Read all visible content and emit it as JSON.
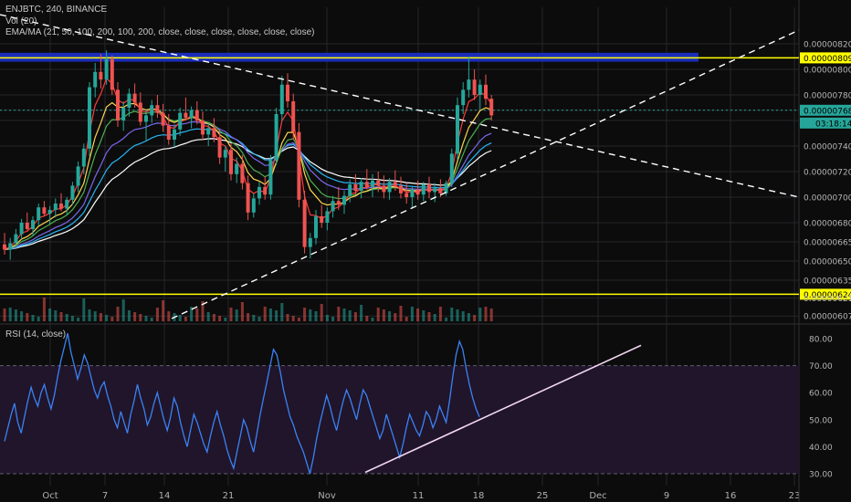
{
  "header": {
    "symbol": "ENJBTC, 240, BINANCE",
    "volume": "Vol (20)",
    "ema": "EMA/MA (21, 50, 100, 200, 100, 200, close, close, close, close, close, close)",
    "rsi": "RSI (14, close)"
  },
  "colors": {
    "background": "#0c0c0c",
    "grid": "#26262a",
    "bull": "#26a69a",
    "bear": "#ef5350",
    "supply_zone": "#1a2db8",
    "yellow_line": "#ffff00",
    "price_line": "#26a69a",
    "rsi_line": "#3b82f6",
    "rsi_band": "#20152a",
    "trend": "#ffffff",
    "ema21": "#ff3b3b",
    "ema50": "#ffd54f",
    "ema100": "#4caf50",
    "ema200": "#7b68ee",
    "ma100": "#29b6f6",
    "ma200": "#ffffff"
  },
  "chart_data": {
    "type": "candlestick",
    "price_axis": {
      "ticks": [
        "0.00000820",
        "0.00000809",
        "0.00000800",
        "0.00000780",
        "0.00000768",
        "0.00000760",
        "0.00000740",
        "0.00000720",
        "0.00000700",
        "0.00000680",
        "0.00000665",
        "0.00000650",
        "0.00000635",
        "0.00000624",
        "0.00000621",
        "0.00000607"
      ],
      "tick_values": [
        820,
        809,
        800,
        780,
        768,
        760,
        740,
        720,
        700,
        680,
        665,
        650,
        635,
        624,
        621,
        607
      ],
      "current_price": "0.00000768",
      "countdown": "03:18:14"
    },
    "x_axis": {
      "labels": [
        "Oct",
        "7",
        "14",
        "21",
        "Nov",
        "11",
        "18",
        "25",
        "Dec",
        "9",
        "16",
        "23"
      ]
    },
    "levels": [
      {
        "name": "resistance",
        "value": 809,
        "label": "0.00000809"
      },
      {
        "name": "support",
        "value": 624,
        "label": "0.00000624"
      }
    ],
    "supply_zone": [
      806,
      813
    ],
    "trendlines": [
      {
        "name": "descending",
        "from": [
          -5,
          840
        ],
        "to": [
          165,
          701
        ],
        "style": "dashed"
      },
      {
        "name": "ascending",
        "from": [
          27,
          603
        ],
        "to": [
          180,
          830
        ],
        "style": "dashed"
      }
    ],
    "candles_ohlc": [
      [
        663,
        672,
        655,
        659
      ],
      [
        659,
        668,
        651,
        664
      ],
      [
        664,
        675,
        660,
        671
      ],
      [
        671,
        683,
        667,
        680
      ],
      [
        680,
        688,
        674,
        675
      ],
      [
        675,
        685,
        670,
        682
      ],
      [
        682,
        695,
        678,
        692
      ],
      [
        692,
        697,
        685,
        687
      ],
      [
        687,
        693,
        679,
        690
      ],
      [
        690,
        699,
        684,
        695
      ],
      [
        695,
        703,
        689,
        691
      ],
      [
        691,
        700,
        686,
        698
      ],
      [
        698,
        712,
        694,
        709
      ],
      [
        709,
        728,
        704,
        724
      ],
      [
        724,
        742,
        718,
        738
      ],
      [
        738,
        790,
        732,
        786
      ],
      [
        786,
        805,
        778,
        798
      ],
      [
        798,
        812,
        785,
        792
      ],
      [
        792,
        815,
        788,
        808
      ],
      [
        808,
        811,
        780,
        784
      ],
      [
        784,
        790,
        755,
        760
      ],
      [
        760,
        775,
        752,
        770
      ],
      [
        770,
        785,
        763,
        781
      ],
      [
        781,
        789,
        770,
        774
      ],
      [
        774,
        782,
        756,
        759
      ],
      [
        759,
        768,
        744,
        764
      ],
      [
        764,
        776,
        758,
        772
      ],
      [
        772,
        780,
        762,
        766
      ],
      [
        766,
        773,
        751,
        756
      ],
      [
        756,
        765,
        741,
        745
      ],
      [
        745,
        757,
        739,
        753
      ],
      [
        753,
        770,
        748,
        766
      ],
      [
        766,
        778,
        760,
        762
      ],
      [
        762,
        771,
        754,
        768
      ],
      [
        768,
        775,
        757,
        760
      ],
      [
        760,
        767,
        745,
        749
      ],
      [
        749,
        758,
        740,
        754
      ],
      [
        754,
        762,
        743,
        747
      ],
      [
        747,
        753,
        726,
        731
      ],
      [
        731,
        740,
        720,
        737
      ],
      [
        737,
        742,
        713,
        718
      ],
      [
        718,
        731,
        711,
        726
      ],
      [
        726,
        733,
        706,
        711
      ],
      [
        711,
        717,
        682,
        688
      ],
      [
        688,
        703,
        684,
        699
      ],
      [
        699,
        712,
        694,
        708
      ],
      [
        708,
        716,
        698,
        702
      ],
      [
        702,
        733,
        698,
        729
      ],
      [
        729,
        770,
        725,
        765
      ],
      [
        765,
        795,
        760,
        788
      ],
      [
        788,
        797,
        770,
        775
      ],
      [
        775,
        781,
        745,
        751
      ],
      [
        751,
        758,
        692,
        698
      ],
      [
        698,
        705,
        656,
        661
      ],
      [
        661,
        672,
        652,
        668
      ],
      [
        668,
        690,
        663,
        685
      ],
      [
        685,
        694,
        676,
        680
      ],
      [
        680,
        692,
        674,
        689
      ],
      [
        689,
        701,
        684,
        697
      ],
      [
        697,
        708,
        690,
        694
      ],
      [
        694,
        705,
        687,
        701
      ],
      [
        701,
        714,
        696,
        710
      ],
      [
        710,
        718,
        702,
        705
      ],
      [
        705,
        715,
        699,
        712
      ],
      [
        712,
        722,
        706,
        708
      ],
      [
        708,
        718,
        700,
        713
      ],
      [
        713,
        720,
        704,
        709
      ],
      [
        709,
        717,
        699,
        704
      ],
      [
        704,
        715,
        698,
        712
      ],
      [
        712,
        721,
        705,
        709
      ],
      [
        709,
        716,
        699,
        703
      ],
      [
        703,
        711,
        695,
        700
      ],
      [
        700,
        708,
        692,
        706
      ],
      [
        706,
        713,
        698,
        702
      ],
      [
        702,
        712,
        697,
        710
      ],
      [
        710,
        716,
        699,
        704
      ],
      [
        704,
        711,
        696,
        707
      ],
      [
        707,
        714,
        700,
        703
      ],
      [
        703,
        713,
        701,
        711
      ],
      [
        711,
        738,
        708,
        734
      ],
      [
        734,
        778,
        729,
        772
      ],
      [
        772,
        790,
        765,
        784
      ],
      [
        784,
        810,
        778,
        792
      ],
      [
        792,
        800,
        776,
        780
      ],
      [
        780,
        792,
        768,
        788
      ],
      [
        788,
        796,
        772,
        777
      ],
      [
        777,
        780,
        760,
        764
      ]
    ],
    "rsi": {
      "title": "RSI (14, close)",
      "ylim": [
        27,
        85
      ],
      "ticks": [
        80,
        70,
        60,
        50,
        40,
        30
      ],
      "tick_labels": [
        "80.00",
        "70.00",
        "60.00",
        "50.00",
        "40.00",
        "30.00"
      ],
      "band": [
        30,
        70
      ],
      "values": [
        42,
        47,
        52,
        56,
        49,
        45,
        51,
        57,
        62,
        58,
        55,
        60,
        63,
        58,
        54,
        59,
        66,
        72,
        77,
        82,
        75,
        70,
        65,
        69,
        74,
        71,
        66,
        61,
        58,
        62,
        64,
        59,
        55,
        50,
        47,
        53,
        49,
        45,
        52,
        57,
        63,
        58,
        54,
        48,
        51,
        56,
        60,
        55,
        50,
        46,
        51,
        58,
        55,
        49,
        44,
        40,
        46,
        52,
        49,
        45,
        41,
        38,
        44,
        49,
        53,
        48,
        44,
        39,
        35,
        32,
        38,
        44,
        50,
        47,
        42,
        38,
        45,
        52,
        58,
        64,
        70,
        76,
        74,
        68,
        61,
        56,
        51,
        48,
        44,
        41,
        38,
        34,
        30,
        36,
        43,
        49,
        54,
        59,
        55,
        50,
        46,
        52,
        57,
        61,
        58,
        54,
        50,
        56,
        61,
        59,
        55,
        51,
        47,
        43,
        46,
        52,
        48,
        44,
        40,
        36,
        41,
        47,
        52,
        49,
        46,
        44,
        48,
        53,
        51,
        47,
        50,
        55,
        52,
        49,
        57,
        66,
        74,
        79,
        76,
        69,
        63,
        58,
        54,
        51
      ],
      "trendlines": [
        {
          "name": "rsi-support",
          "from": [
            0.775,
            30.5
          ],
          "to": [
            1.36,
            77.5
          ],
          "style": "solid"
        }
      ]
    },
    "volume_range": [
      0,
      1
    ]
  }
}
